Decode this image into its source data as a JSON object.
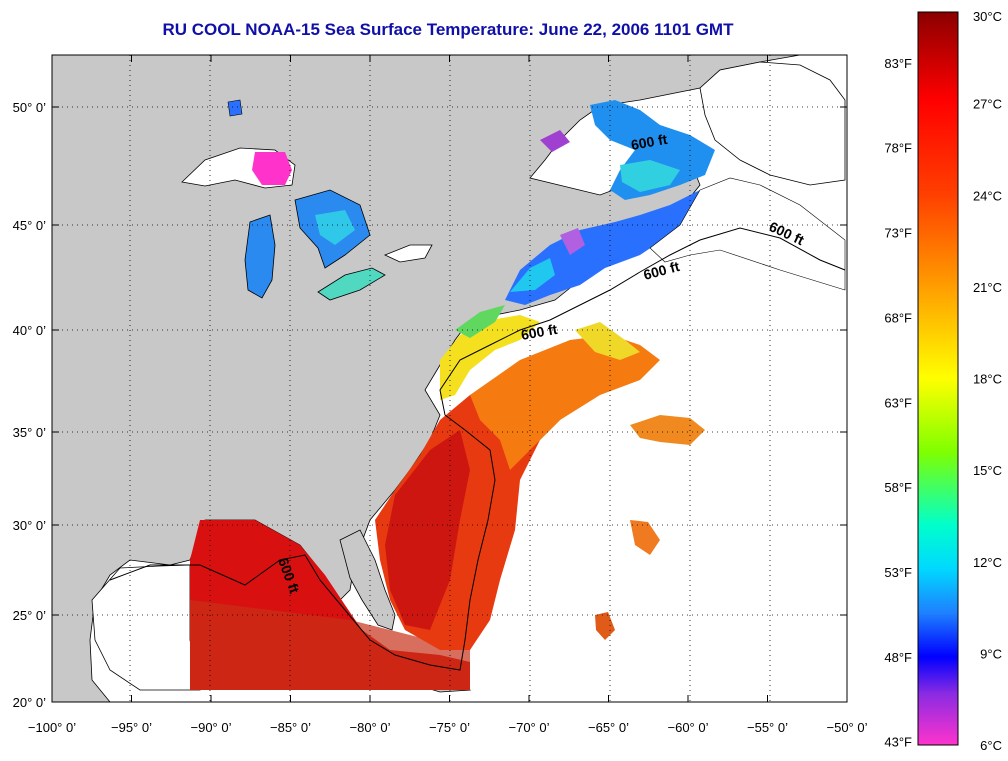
{
  "title": "RU COOL  NOAA-15  Sea Surface Temperature:  June 22, 2006 1101 GMT",
  "map": {
    "lon_range": [
      -100,
      -50
    ],
    "lat_range": [
      20,
      52
    ],
    "x_ticks": [
      {
        "value": -100,
        "label": "−100° 0’"
      },
      {
        "value": -95,
        "label": "−95° 0’"
      },
      {
        "value": -90,
        "label": "−90° 0’"
      },
      {
        "value": -85,
        "label": "−85° 0’"
      },
      {
        "value": -80,
        "label": "−80° 0’"
      },
      {
        "value": -75,
        "label": "−75° 0’"
      },
      {
        "value": -70,
        "label": "−70° 0’"
      },
      {
        "value": -65,
        "label": "−65° 0’"
      },
      {
        "value": -60,
        "label": "−60° 0’"
      },
      {
        "value": -55,
        "label": "−55° 0’"
      },
      {
        "value": -50,
        "label": "−50° 0’"
      }
    ],
    "y_ticks": [
      {
        "value": 20,
        "label": "20° 0’"
      },
      {
        "value": 25,
        "label": "25° 0’"
      },
      {
        "value": 30,
        "label": "30° 0’"
      },
      {
        "value": 35,
        "label": "35° 0’"
      },
      {
        "value": 40,
        "label": "40° 0’"
      },
      {
        "value": 45,
        "label": "45° 0’"
      },
      {
        "value": 50,
        "label": "50° 0’"
      }
    ],
    "grid": "dotted",
    "contour_label": "600 ft",
    "colors": {
      "land": "#c8c8c8",
      "no_data": "#ffffff"
    }
  },
  "colorbar": {
    "range_c": [
      6,
      30
    ],
    "celsius_labels": [
      {
        "value": 30,
        "label": "30°C"
      },
      {
        "value": 27,
        "label": "27°C"
      },
      {
        "value": 24,
        "label": "24°C"
      },
      {
        "value": 21,
        "label": "21°C"
      },
      {
        "value": 18,
        "label": "18°C"
      },
      {
        "value": 15,
        "label": "15°C"
      },
      {
        "value": 12,
        "label": "12°C"
      },
      {
        "value": 9,
        "label": "9°C"
      },
      {
        "value": 6,
        "label": "6°C"
      }
    ],
    "fahrenheit_labels": [
      {
        "value": 83,
        "label": "83°F"
      },
      {
        "value": 78,
        "label": "78°F"
      },
      {
        "value": 73,
        "label": "73°F"
      },
      {
        "value": 68,
        "label": "68°F"
      },
      {
        "value": 63,
        "label": "63°F"
      },
      {
        "value": 58,
        "label": "58°F"
      },
      {
        "value": 53,
        "label": "53°F"
      },
      {
        "value": 48,
        "label": "48°F"
      },
      {
        "value": 43,
        "label": "43°F"
      }
    ],
    "gradient_stops": [
      "#8b0000",
      "#ff0000",
      "#ff8c00",
      "#ffff00",
      "#7fff00",
      "#00e5ee",
      "#1e90ff",
      "#0000ff",
      "#8a2be2",
      "#ff00ff",
      "#ff33cc"
    ]
  }
}
